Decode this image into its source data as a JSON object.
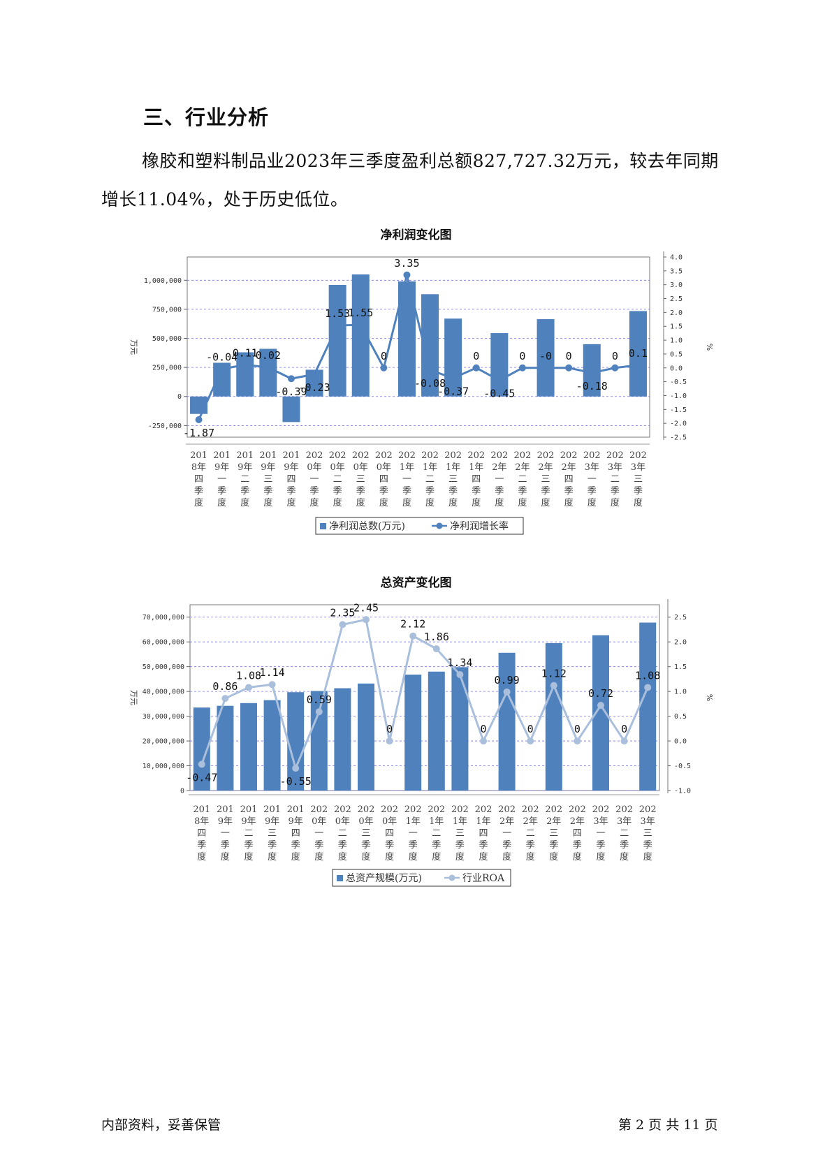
{
  "section": {
    "heading": "三、行业分析",
    "paragraph": "橡胶和塑料制品业2023年三季度盈利总额827,727.32万元，较去年同期增长11.04%，处于历史低位。"
  },
  "footer": {
    "left": "内部资料，妥善保管",
    "right": "第 2 页   共 11 页"
  },
  "chart_data": [
    {
      "type": "bar",
      "title": "净利润变化图",
      "ylabel": "万元",
      "y2label": "%",
      "ylim": [
        -350000,
        1200000
      ],
      "y2lim": [
        -2.5,
        4.0
      ],
      "yticks": [
        -250000,
        0,
        250000,
        500000,
        750000,
        1000000
      ],
      "ytick_labels": [
        "-250,000",
        "0",
        "250,000",
        "500,000",
        "750,000",
        "1,000,000"
      ],
      "y2ticks": [
        -2.5,
        -2.0,
        -1.5,
        -1.0,
        -0.5,
        0.0,
        0.5,
        1.0,
        1.5,
        2.0,
        2.5,
        3.0,
        3.5,
        4.0
      ],
      "y2tick_labels": [
        "-2.5",
        "-2.0",
        "-1.5",
        "-1.0",
        "-0.5",
        "0.0",
        "0.5",
        "1.0",
        "1.5",
        "2.0",
        "2.5",
        "3.0",
        "3.5",
        "4.0"
      ],
      "grid": true,
      "legend_position": "bottom",
      "categories": [
        [
          "201",
          "8年",
          "四",
          "季",
          "度"
        ],
        [
          "201",
          "9年",
          "一",
          "季",
          "度"
        ],
        [
          "201",
          "9年",
          "二",
          "季",
          "度"
        ],
        [
          "201",
          "9年",
          "三",
          "季",
          "度"
        ],
        [
          "201",
          "9年",
          "四",
          "季",
          "度"
        ],
        [
          "202",
          "0年",
          "一",
          "季",
          "度"
        ],
        [
          "202",
          "0年",
          "二",
          "季",
          "度"
        ],
        [
          "202",
          "0年",
          "三",
          "季",
          "度"
        ],
        [
          "202",
          "0年",
          "四",
          "季",
          "度"
        ],
        [
          "202",
          "1年",
          "一",
          "季",
          "度"
        ],
        [
          "202",
          "1年",
          "二",
          "季",
          "度"
        ],
        [
          "202",
          "1年",
          "三",
          "季",
          "度"
        ],
        [
          "202",
          "1年",
          "四",
          "季",
          "度"
        ],
        [
          "202",
          "2年",
          "一",
          "季",
          "度"
        ],
        [
          "202",
          "2年",
          "二",
          "季",
          "度"
        ],
        [
          "202",
          "2年",
          "三",
          "季",
          "度"
        ],
        [
          "202",
          "2年",
          "四",
          "季",
          "度"
        ],
        [
          "202",
          "3年",
          "一",
          "季",
          "度"
        ],
        [
          "202",
          "3年",
          "二",
          "季",
          "度"
        ],
        [
          "202",
          "3年",
          "三",
          "季",
          "度"
        ]
      ],
      "series": [
        {
          "name": "净利润总数(万元)",
          "kind": "bar",
          "axis": "left",
          "color": "#4f81bd",
          "values": [
            -150000,
            290000,
            380000,
            410000,
            -220000,
            230000,
            960000,
            1050000,
            null,
            990000,
            880000,
            670000,
            null,
            545000,
            null,
            665000,
            null,
            450000,
            null,
            735000
          ]
        },
        {
          "name": "净利润增长率",
          "kind": "line",
          "axis": "right",
          "color": "#4f81bd",
          "values": [
            -1.87,
            -0.04,
            0.11,
            0.02,
            -0.39,
            -0.23,
            1.53,
            1.55,
            0,
            3.35,
            -0.08,
            -0.37,
            0,
            -0.45,
            0,
            0,
            0,
            -0.18,
            0,
            0.1
          ],
          "labels": [
            "-1.87",
            "-0.04",
            "0.11",
            "0.02",
            "-0.39",
            "-0.23",
            "1.53",
            "1.55",
            "0",
            "3.35",
            "-0.08",
            "-0.37",
            "0",
            "-0.45",
            "0",
            "-0",
            "0",
            "-0.18",
            "0",
            "0.1"
          ]
        }
      ]
    },
    {
      "type": "bar",
      "title": "总资产变化图",
      "ylabel": "万元",
      "y2label": "%",
      "ylim": [
        0,
        75000000
      ],
      "y2lim": [
        -1.0,
        2.75
      ],
      "yticks": [
        0,
        10000000,
        20000000,
        30000000,
        40000000,
        50000000,
        60000000,
        70000000
      ],
      "ytick_labels": [
        "0",
        "10,000,000",
        "20,000,000",
        "30,000,000",
        "40,000,000",
        "50,000,000",
        "60,000,000",
        "70,000,000"
      ],
      "y2ticks": [
        -1.0,
        -0.5,
        0.0,
        0.5,
        1.0,
        1.5,
        2.0,
        2.5
      ],
      "y2tick_labels": [
        "-1.0",
        "-0.5",
        "0.0",
        "0.5",
        "1.0",
        "1.5",
        "2.0",
        "2.5"
      ],
      "grid": true,
      "legend_position": "bottom",
      "categories": [
        [
          "201",
          "8年",
          "四",
          "季",
          "度"
        ],
        [
          "201",
          "9年",
          "一",
          "季",
          "度"
        ],
        [
          "201",
          "9年",
          "二",
          "季",
          "度"
        ],
        [
          "201",
          "9年",
          "三",
          "季",
          "度"
        ],
        [
          "201",
          "9年",
          "四",
          "季",
          "度"
        ],
        [
          "202",
          "0年",
          "一",
          "季",
          "度"
        ],
        [
          "202",
          "0年",
          "二",
          "季",
          "度"
        ],
        [
          "202",
          "0年",
          "三",
          "季",
          "度"
        ],
        [
          "202",
          "0年",
          "四",
          "季",
          "度"
        ],
        [
          "202",
          "1年",
          "一",
          "季",
          "度"
        ],
        [
          "202",
          "1年",
          "二",
          "季",
          "度"
        ],
        [
          "202",
          "1年",
          "三",
          "季",
          "度"
        ],
        [
          "202",
          "1年",
          "四",
          "季",
          "度"
        ],
        [
          "202",
          "2年",
          "一",
          "季",
          "度"
        ],
        [
          "202",
          "2年",
          "二",
          "季",
          "度"
        ],
        [
          "202",
          "2年",
          "三",
          "季",
          "度"
        ],
        [
          "202",
          "2年",
          "四",
          "季",
          "度"
        ],
        [
          "202",
          "3年",
          "一",
          "季",
          "度"
        ],
        [
          "202",
          "3年",
          "二",
          "季",
          "度"
        ],
        [
          "202",
          "3年",
          "三",
          "季",
          "度"
        ]
      ],
      "series": [
        {
          "name": "总资产规模(万元)",
          "kind": "bar",
          "axis": "left",
          "color": "#4f81bd",
          "values": [
            33500000,
            34200000,
            35300000,
            36500000,
            39700000,
            40200000,
            41300000,
            43200000,
            null,
            46800000,
            48000000,
            49800000,
            null,
            55600000,
            null,
            59500000,
            null,
            62700000,
            null,
            67800000
          ]
        },
        {
          "name": "行业ROA",
          "kind": "line",
          "axis": "right",
          "color": "#a9bfdc",
          "values": [
            -0.47,
            0.86,
            1.08,
            1.14,
            -0.55,
            0.59,
            2.35,
            2.45,
            0,
            2.12,
            1.86,
            1.34,
            0,
            0.99,
            0,
            1.12,
            0,
            0.72,
            0,
            1.08
          ],
          "labels": [
            "-0.47",
            "0.86",
            "1.08",
            "1.14",
            "-0.55",
            "0.59",
            "2.35",
            "2.45",
            "0",
            "2.12",
            "1.86",
            "1.34",
            "0",
            "0.99",
            "0",
            "1.12",
            "0",
            "0.72",
            "0",
            "1.08"
          ]
        }
      ]
    }
  ]
}
